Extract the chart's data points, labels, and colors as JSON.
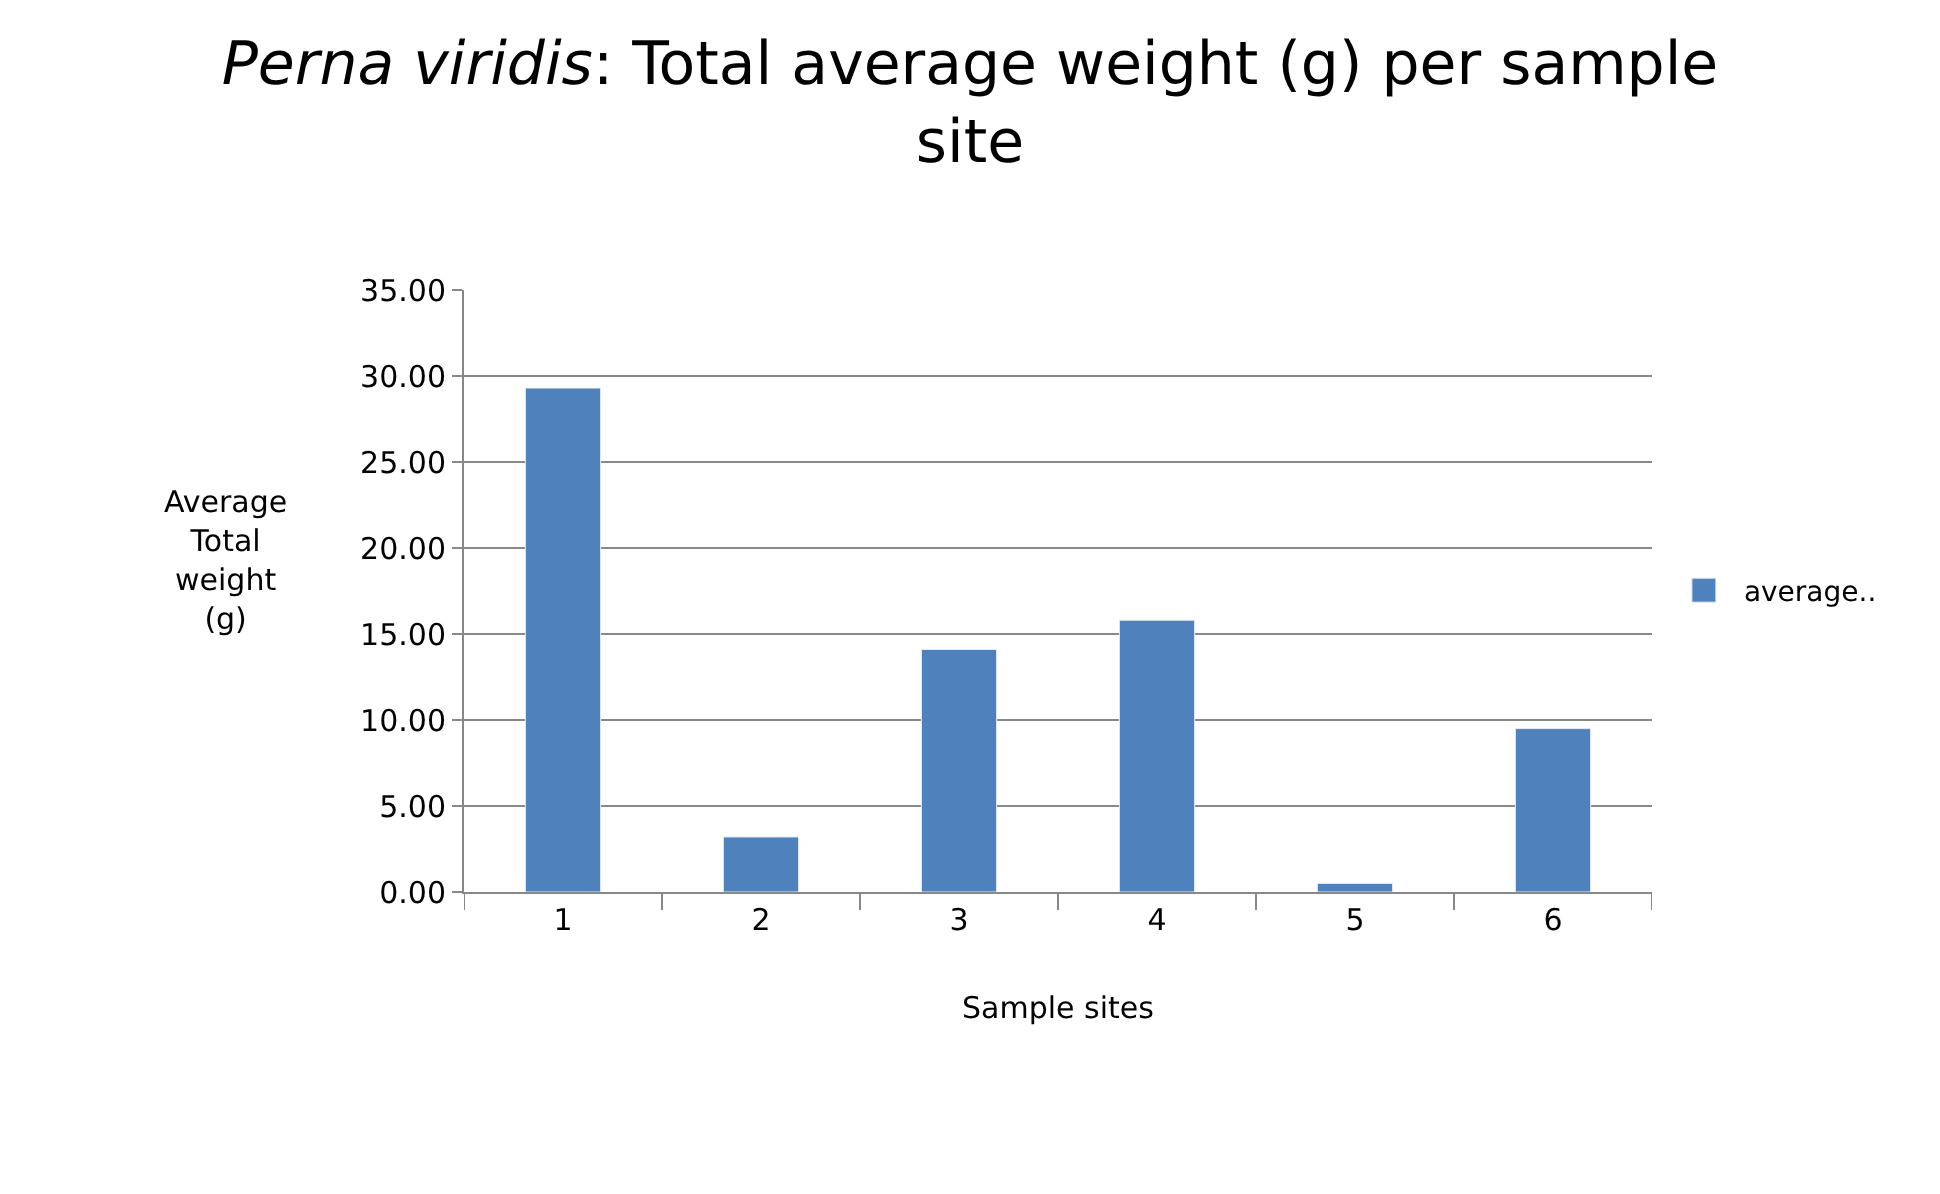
{
  "chart_data": {
    "type": "bar",
    "title": "Perna viridis: Total average weight (g) per sample site",
    "xlabel": "Sample sites",
    "ylabel": "Average Total weight (g)",
    "categories": [
      "1",
      "2",
      "3",
      "4",
      "5",
      "6"
    ],
    "series": [
      {
        "name": "average..",
        "color": "#4f81bd",
        "values": [
          29.3,
          3.2,
          14.1,
          15.8,
          0.5,
          9.5
        ]
      }
    ],
    "ylim": [
      0,
      35
    ],
    "yticks": [
      {
        "value": 0,
        "label": "0.00"
      },
      {
        "value": 5,
        "label": "5.00"
      },
      {
        "value": 10,
        "label": "10.00"
      },
      {
        "value": 15,
        "label": "15.00"
      },
      {
        "value": 20,
        "label": "20.00"
      },
      {
        "value": 25,
        "label": "25.00"
      },
      {
        "value": 30,
        "label": "30.00"
      },
      {
        "value": 35,
        "label": "35.00"
      }
    ],
    "grid": "y",
    "legend": "right"
  }
}
